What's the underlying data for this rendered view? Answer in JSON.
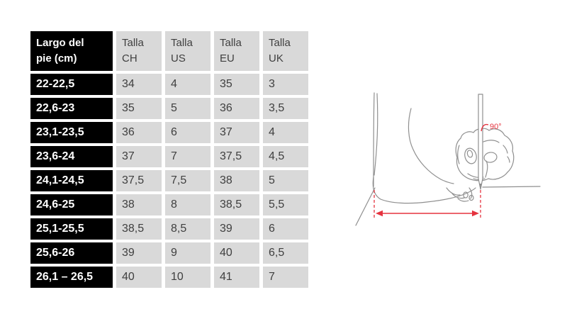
{
  "page": {
    "background_color": "#ffffff"
  },
  "table": {
    "header": {
      "foot_length": "Largo del pie (cm)",
      "sizes": [
        "Talla CH",
        "Talla US",
        "Talla EU",
        "Talla UK"
      ]
    },
    "rows": [
      [
        "22-22,5",
        "34",
        "4",
        "35",
        "3"
      ],
      [
        "22,6-23",
        "35",
        "5",
        "36",
        "3,5"
      ],
      [
        "23,1-23,5",
        "36",
        "6",
        "37",
        "4"
      ],
      [
        "23,6-24",
        "37",
        "7",
        "37,5",
        "4,5"
      ],
      [
        "24,1-24,5",
        "37,5",
        "7,5",
        "38",
        "5"
      ],
      [
        "24,6-25",
        "38",
        "8",
        "38,5",
        "5,5"
      ],
      [
        "25,1-25,5",
        "38,5",
        "8,5",
        "39",
        "6"
      ],
      [
        "25,6-26",
        "39",
        "9",
        "40",
        "6,5"
      ],
      [
        "26,1 – 26,5",
        "40",
        "10",
        "41",
        "7"
      ]
    ],
    "colors": {
      "row_label_background": "#000000",
      "row_label_text": "#ffffff",
      "cell_background": "#d9d9d9",
      "cell_text": "#3f3f3f"
    }
  },
  "figure": {
    "angle_label": "90°",
    "colors": {
      "outline": "#8f8f8f",
      "accent": "#e5333f"
    }
  }
}
